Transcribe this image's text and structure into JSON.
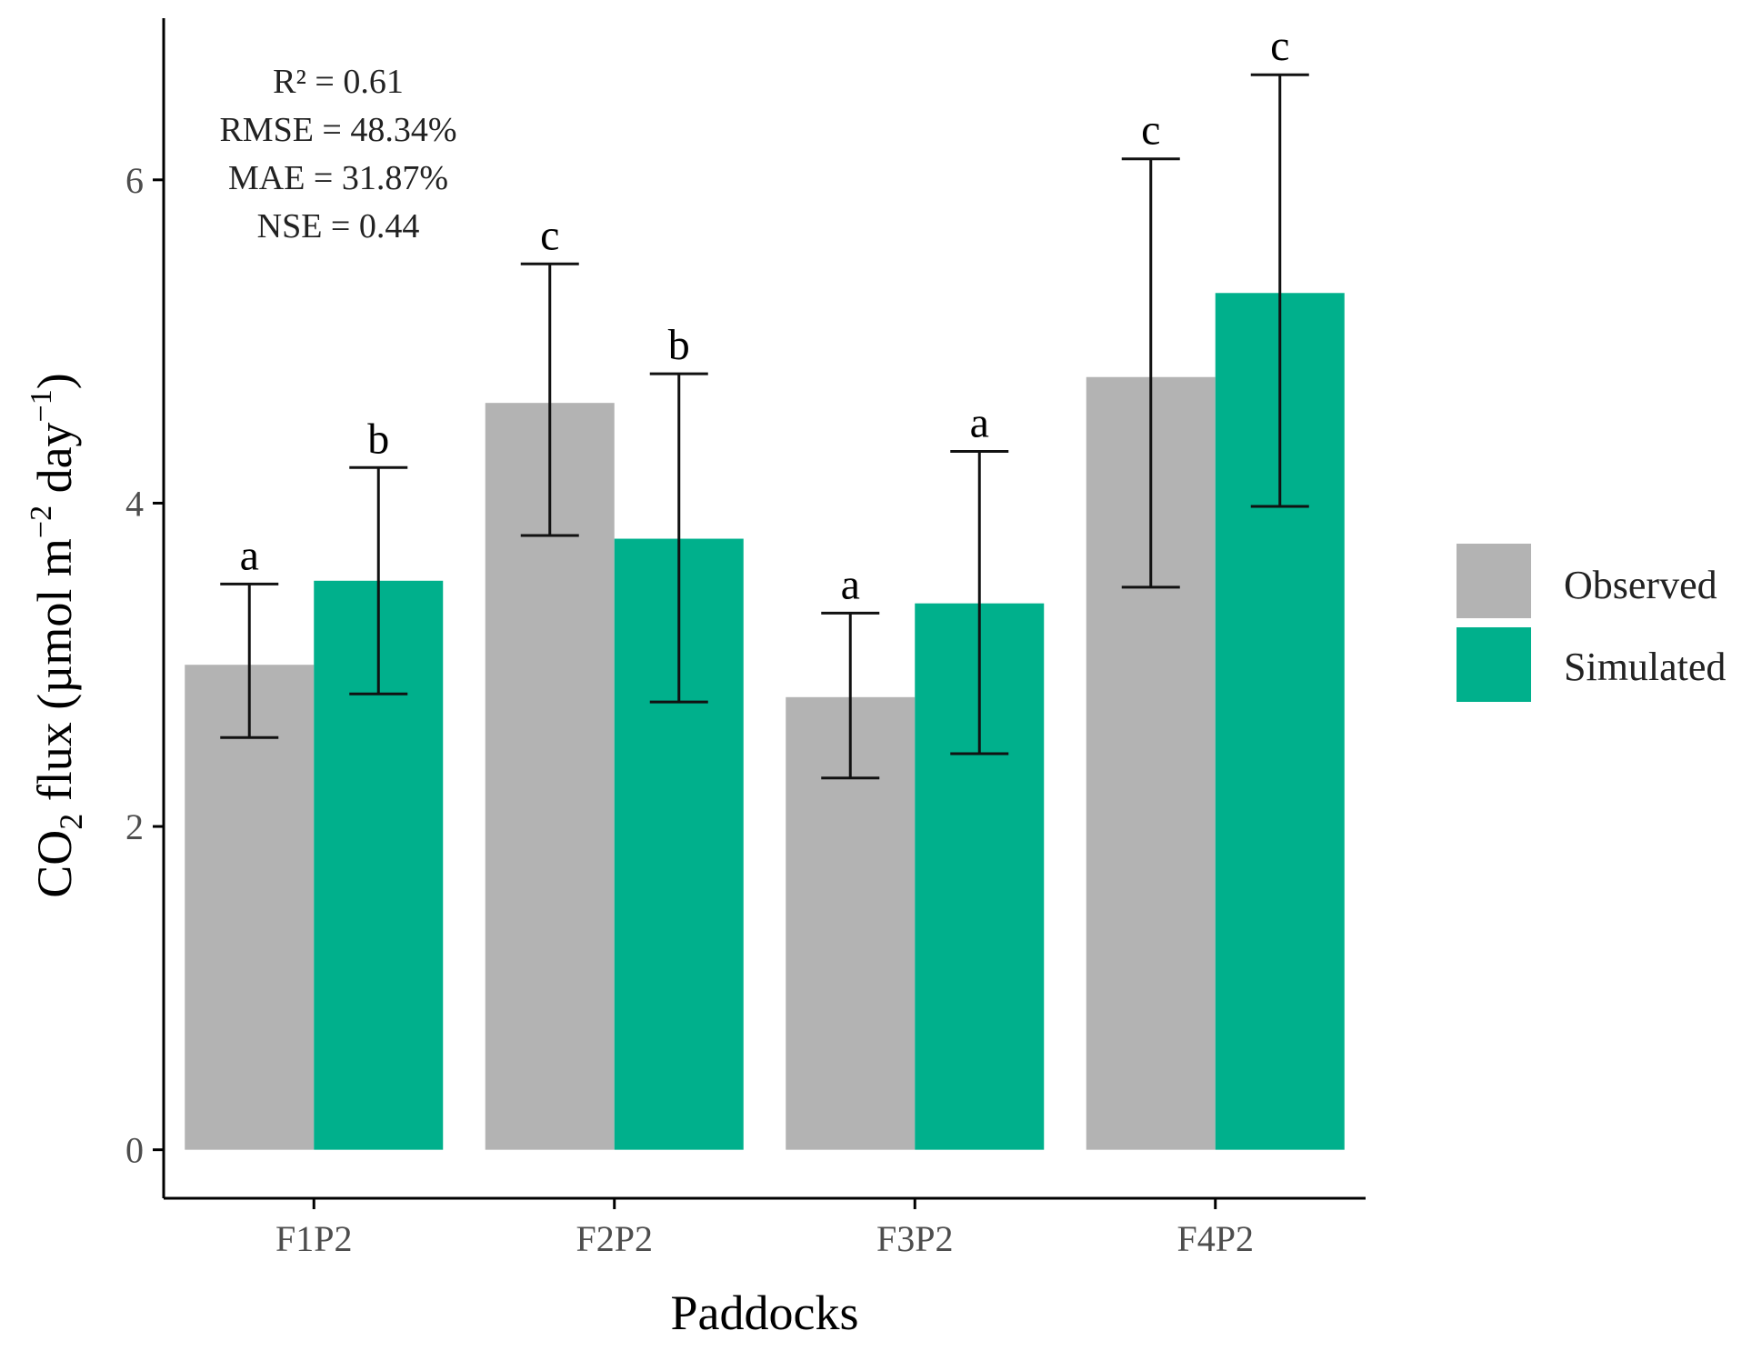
{
  "chart_data": {
    "type": "bar",
    "title": "",
    "xlabel": "Paddocks",
    "ylabel": {
      "main": "CO",
      "sub": "2",
      "rest": " flux (µmol m",
      "sup1": "−2",
      "mid": " day",
      "sup2": "−1",
      "end": ")"
    },
    "categories": [
      "F1P2",
      "F2P2",
      "F3P2",
      "F4P2"
    ],
    "ylim": [
      -0.3,
      7.0
    ],
    "yticks": [
      0,
      2,
      4,
      6
    ],
    "ytick_labels": [
      "0",
      "2",
      "4",
      "6"
    ],
    "series": [
      {
        "name": "Observed",
        "color": "#b3b3b3",
        "values": [
          3.0,
          4.62,
          2.8,
          4.78
        ],
        "err_low": [
          2.55,
          3.8,
          2.3,
          3.48
        ],
        "err_high": [
          3.5,
          5.48,
          3.32,
          6.13
        ],
        "sig": [
          "a",
          "c",
          "a",
          "c"
        ]
      },
      {
        "name": "Simulated",
        "color": "#00b08c",
        "values": [
          3.52,
          3.78,
          3.38,
          5.3
        ],
        "err_low": [
          2.82,
          2.77,
          2.45,
          3.98
        ],
        "err_high": [
          4.22,
          4.8,
          4.32,
          6.65
        ],
        "sig": [
          "b",
          "b",
          "a",
          "c"
        ]
      }
    ],
    "stats": [
      "R² = 0.61",
      "RMSE = 48.34%",
      "MAE  = 31.87%",
      "NSE  = 0.44"
    ],
    "legend": {
      "position": "right",
      "entries": [
        "Observed",
        "Simulated"
      ]
    },
    "grid": false
  }
}
